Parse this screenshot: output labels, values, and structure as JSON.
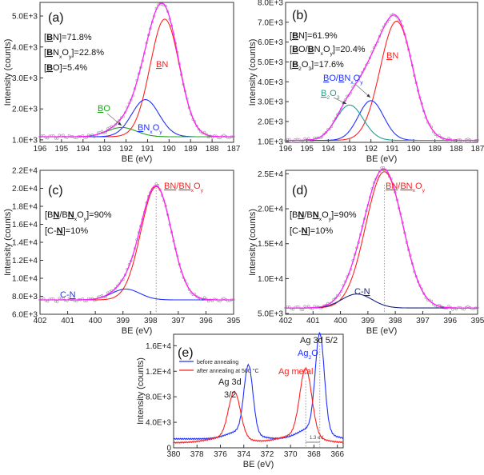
{
  "chart_data": [
    {
      "panel": "(a)",
      "type": "line",
      "xlabel": "BE (eV)",
      "ylabel": "Intensity (counts)",
      "xlim": [
        196,
        187
      ],
      "ylim": [
        920,
        5440
      ],
      "xticks": [
        "196",
        "195",
        "194",
        "193",
        "192",
        "191",
        "190",
        "189",
        "188",
        "187"
      ],
      "yticks": [
        {
          "v": 1000,
          "l": "1.0E+3"
        },
        {
          "v": 2000,
          "l": "2.0E+3"
        },
        {
          "v": 3000,
          "l": "3.0E+3"
        },
        {
          "v": 4000,
          "l": "4.0E+3"
        },
        {
          "v": 5000,
          "l": "5.0E+3"
        }
      ],
      "baseline": 1100,
      "components": [
        {
          "name": "BN",
          "center": 190.2,
          "height": 3800,
          "fwhm": 1.6,
          "color": "#ff2020"
        },
        {
          "name": "BNxOy",
          "center": 191.1,
          "height": 1200,
          "fwhm": 1.5,
          "color": "#2030ff"
        },
        {
          "name": "BO",
          "center": 192.2,
          "height": 300,
          "fwhm": 1.6,
          "color": "#20a020"
        }
      ],
      "envelope_color": "#ff20ff",
      "stats": [
        [
          {
            "t": "["
          },
          {
            "t": "B",
            "b": 1
          },
          {
            "t": "N]=71.8%"
          }
        ],
        [
          {
            "t": "["
          },
          {
            "t": "B",
            "b": 1
          },
          {
            "t": "N"
          },
          {
            "t": "x",
            "s": 1
          },
          {
            "t": "O"
          },
          {
            "t": "y",
            "s": 1
          },
          {
            "t": "]=22.8%"
          }
        ],
        [
          {
            "t": "["
          },
          {
            "t": "B",
            "b": 1
          },
          {
            "t": "O]=5.4%"
          }
        ]
      ],
      "labels": [
        {
          "color": "#ff2020",
          "parts": [
            {
              "t": "B",
              "u": 1
            },
            {
              "t": "N"
            }
          ]
        },
        {
          "color": "#20a020",
          "parts": [
            {
              "t": "B",
              "u": 1
            },
            {
              "t": "O"
            }
          ]
        },
        {
          "color": "#2030ff",
          "parts": [
            {
              "t": "B",
              "u": 1
            },
            {
              "t": "N"
            },
            {
              "t": "x",
              "s": 1
            },
            {
              "t": "O"
            },
            {
              "t": "y",
              "s": 1
            }
          ]
        }
      ]
    },
    {
      "panel": "(b)",
      "type": "line",
      "xlabel": "BE (eV)",
      "ylabel": "Intensity (counts)",
      "xlim": [
        196,
        187
      ],
      "ylim": [
        950,
        8000
      ],
      "xticks": [
        "196",
        "195",
        "194",
        "193",
        "192",
        "191",
        "190",
        "189",
        "188",
        "187"
      ],
      "yticks": [
        {
          "v": 1000,
          "l": "1.0E+3"
        },
        {
          "v": 2000,
          "l": "2.0E+3"
        },
        {
          "v": 3000,
          "l": "3.0E+3"
        },
        {
          "v": 4000,
          "l": "4.0E+3"
        },
        {
          "v": 5000,
          "l": "5.0E+3"
        },
        {
          "v": 6000,
          "l": "6.0E+3"
        },
        {
          "v": 7000,
          "l": "7.0E+3"
        },
        {
          "v": 8000,
          "l": "8.0E+3"
        }
      ],
      "baseline": 1050,
      "components": [
        {
          "name": "BN",
          "center": 190.8,
          "height": 6000,
          "fwhm": 1.8,
          "color": "#ff2020"
        },
        {
          "name": "BO/BNxOy",
          "center": 192.0,
          "height": 2000,
          "fwhm": 1.4,
          "color": "#2030ff"
        },
        {
          "name": "B2O3",
          "center": 193.0,
          "height": 1780,
          "fwhm": 1.5,
          "color": "#20a090"
        }
      ],
      "envelope_color": "#ff20ff",
      "stats": [
        [
          {
            "t": "["
          },
          {
            "t": "B",
            "b": 1
          },
          {
            "t": "N]=61.9%"
          }
        ],
        [
          {
            "t": "["
          },
          {
            "t": "B",
            "b": 1
          },
          {
            "t": "O/"
          },
          {
            "t": "B",
            "b": 1
          },
          {
            "t": "N"
          },
          {
            "t": "x",
            "s": 1
          },
          {
            "t": "O"
          },
          {
            "t": "y",
            "s": 1
          },
          {
            "t": "]=20.4%"
          }
        ],
        [
          {
            "t": "["
          },
          {
            "t": "B",
            "b": 1
          },
          {
            "t": "2",
            "s": 1
          },
          {
            "t": "O"
          },
          {
            "t": "3",
            "s": 1
          },
          {
            "t": "]=17.6%"
          }
        ]
      ],
      "labels": [
        {
          "color": "#ff2020",
          "parts": [
            {
              "t": "B",
              "u": 1
            },
            {
              "t": "N"
            }
          ]
        },
        {
          "color": "#2030ff",
          "parts": [
            {
              "t": "B",
              "u": 1
            },
            {
              "t": "O/"
            },
            {
              "t": "B",
              "u": 1
            },
            {
              "t": "N"
            },
            {
              "t": "x",
              "s": 1
            },
            {
              "t": "O"
            },
            {
              "t": "y",
              "s": 1
            }
          ]
        },
        {
          "color": "#20a090",
          "parts": [
            {
              "t": "B",
              "u": 1
            },
            {
              "t": "2",
              "s": 1
            },
            {
              "t": "O"
            },
            {
              "t": "3",
              "s": 1
            }
          ]
        }
      ]
    },
    {
      "panel": "(c)",
      "type": "line",
      "xlabel": "BE (eV)",
      "ylabel": "Intensity (counts)",
      "xlim": [
        402,
        395
      ],
      "ylim": [
        6000,
        22000
      ],
      "xticks": [
        "402",
        "401",
        "400",
        "399",
        "398",
        "397",
        "396",
        "395"
      ],
      "yticks": [
        {
          "v": 6000,
          "l": "6.0E+3"
        },
        {
          "v": 8000,
          "l": "8.0E+3"
        },
        {
          "v": 10000,
          "l": "1.0E+4"
        },
        {
          "v": 12000,
          "l": "1.2E+4"
        },
        {
          "v": 14000,
          "l": "1.4E+4"
        },
        {
          "v": 16000,
          "l": "1.6E+4"
        },
        {
          "v": 18000,
          "l": "1.8E+4"
        },
        {
          "v": 20000,
          "l": "2.0E+4"
        },
        {
          "v": 22000,
          "l": "2.2E+4"
        }
      ],
      "baseline": 7600,
      "components": [
        {
          "name": "BN/BNxOy",
          "center": 397.8,
          "height": 12600,
          "fwhm": 1.3,
          "color": "#ff2020"
        },
        {
          "name": "C-N",
          "center": 398.9,
          "height": 1200,
          "fwhm": 1.2,
          "color": "#2030ff"
        }
      ],
      "envelope_color": "#ff20ff",
      "stats": [
        [
          {
            "t": "[B"
          },
          {
            "t": "N",
            "b": 1
          },
          {
            "t": "/B"
          },
          {
            "t": "N",
            "b": 1
          },
          {
            "t": "x",
            "s": 1
          },
          {
            "t": "O"
          },
          {
            "t": "y",
            "s": 1
          },
          {
            "t": "]=90%"
          }
        ],
        [
          {
            "t": "[C-"
          },
          {
            "t": "N",
            "b": 1
          },
          {
            "t": "]=10%"
          }
        ]
      ],
      "labels": [
        {
          "color": "#ff2020",
          "parts": [
            {
              "t": "BN",
              "u": 1
            },
            {
              "t": "/"
            },
            {
              "t": "BN",
              "u": 1
            },
            {
              "t": "x",
              "s": 1
            },
            {
              "t": "O"
            },
            {
              "t": "y",
              "s": 1
            }
          ]
        },
        {
          "color": "#2030ff",
          "parts": [
            {
              "t": "C-"
            },
            {
              "t": "N",
              "u": 1
            }
          ]
        }
      ]
    },
    {
      "panel": "(d)",
      "type": "line",
      "xlabel": "BE (eV)",
      "ylabel": "Intensity (counts)",
      "xlim": [
        402,
        395
      ],
      "ylim": [
        4900,
        25500
      ],
      "xticks": [
        "402",
        "401",
        "400",
        "399",
        "398",
        "397",
        "396",
        "395"
      ],
      "yticks": [
        {
          "v": 5000,
          "l": "5.0E+3"
        },
        {
          "v": 10000,
          "l": "1.0E+4"
        },
        {
          "v": 15000,
          "l": "1.5E+4"
        },
        {
          "v": 20000,
          "l": "2.0E+4"
        },
        {
          "v": 25000,
          "l": "2.5E+4"
        }
      ],
      "baseline": 5800,
      "components": [
        {
          "name": "BN/BNxOy",
          "center": 398.4,
          "height": 19500,
          "fwhm": 1.6,
          "color": "#ff2020"
        },
        {
          "name": "C-N",
          "center": 399.4,
          "height": 2000,
          "fwhm": 1.3,
          "color": "#1a237e"
        }
      ],
      "envelope_color": "#ff20ff",
      "stats": [
        [
          {
            "t": "[B"
          },
          {
            "t": "N",
            "b": 1
          },
          {
            "t": "/B"
          },
          {
            "t": "N",
            "b": 1
          },
          {
            "t": "x",
            "s": 1
          },
          {
            "t": "O"
          },
          {
            "t": "y",
            "s": 1
          },
          {
            "t": "]=90%"
          }
        ],
        [
          {
            "t": "[C-"
          },
          {
            "t": "N",
            "b": 1
          },
          {
            "t": "]=10%"
          }
        ]
      ],
      "labels": [
        {
          "color": "#ff2020",
          "parts": [
            {
              "t": "BN",
              "u": 1
            },
            {
              "t": "/"
            },
            {
              "t": "BN",
              "u": 1
            },
            {
              "t": "x",
              "s": 1
            },
            {
              "t": "O"
            },
            {
              "t": "y",
              "s": 1
            }
          ]
        },
        {
          "color": "#1a237e",
          "parts": [
            {
              "t": "C-"
            },
            {
              "t": "N",
              "u": 1
            }
          ]
        }
      ]
    },
    {
      "panel": "(e)",
      "type": "line",
      "xlabel": "BE (eV)",
      "ylabel": "Intensity (counts)",
      "xlim": [
        380,
        365.5
      ],
      "ylim": [
        0,
        17800
      ],
      "xticks": [
        "380",
        "378",
        "376",
        "374",
        "372",
        "370",
        "368",
        "366"
      ],
      "yticks": [
        {
          "v": 0,
          "l": "0"
        },
        {
          "v": 4000,
          "l": "4.0E+3"
        },
        {
          "v": 8000,
          "l": "8.0E+3"
        },
        {
          "v": 12000,
          "l": "1.2E+4"
        },
        {
          "v": 16000,
          "l": "1.6E+4"
        }
      ],
      "series": [
        {
          "name": "before annealing",
          "color": "#2030ff",
          "baseline": 1400,
          "peaks": [
            {
              "center": 373.6,
              "height": 10500,
              "fwhm": 0.9
            },
            {
              "center": 367.5,
              "height": 15000,
              "fwhm": 0.9
            }
          ]
        },
        {
          "name": "after annealing at 500 °C",
          "color": "#ff2020",
          "baseline": 800,
          "peaks": [
            {
              "center": 374.8,
              "height": 7200,
              "fwhm": 1.2
            },
            {
              "center": 368.7,
              "height": 10500,
              "fwhm": 1.2
            }
          ]
        }
      ],
      "legend_placement": "top-left",
      "annotations": [
        {
          "text": "Ag 3d",
          "color": "#222222"
        },
        {
          "text": "3/2",
          "color": "#222222"
        },
        {
          "text": "Ag 3d 5/2",
          "color": "#222222"
        },
        {
          "text": "Ag metal",
          "color": "#ff2020"
        },
        {
          "text": "1.3 eV",
          "color": "#444444"
        }
      ],
      "ag2o_label": {
        "color": "#2030ff",
        "parts": [
          {
            "t": "Ag"
          },
          {
            "t": "2",
            "s": 1
          },
          {
            "t": "O"
          }
        ]
      }
    }
  ]
}
